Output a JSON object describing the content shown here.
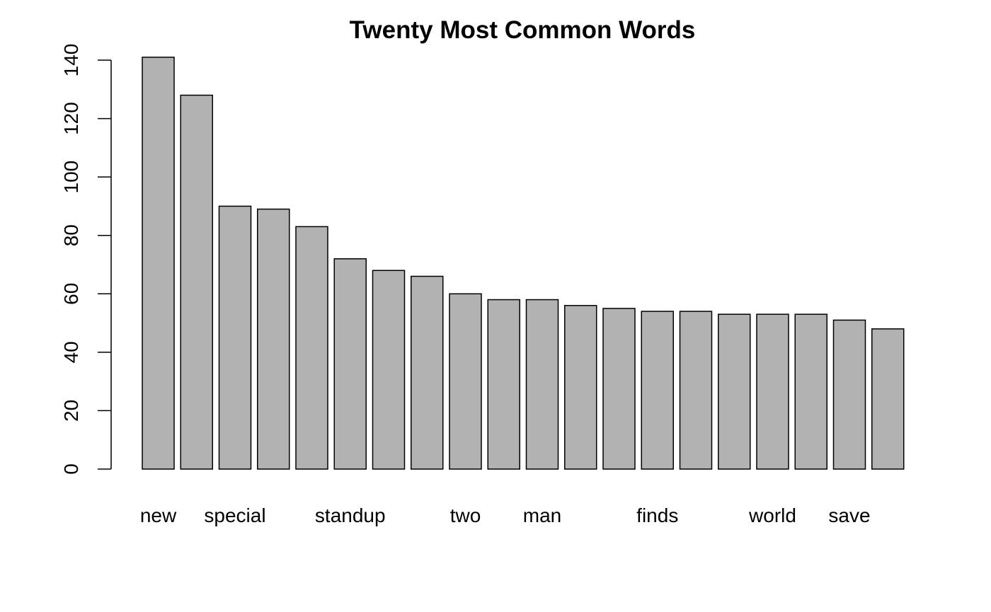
{
  "chart_data": {
    "type": "bar",
    "title": "Twenty Most Common Words",
    "xlabel": "",
    "ylabel": "",
    "ylim": [
      0,
      140
    ],
    "y_ticks": [
      0,
      20,
      40,
      60,
      80,
      100,
      120,
      140
    ],
    "y_tick_labels": [
      "0",
      "20",
      "40",
      "60",
      "80",
      "100",
      "120",
      "140"
    ],
    "values": [
      141,
      128,
      90,
      89,
      83,
      72,
      68,
      66,
      60,
      58,
      58,
      56,
      55,
      54,
      54,
      53,
      53,
      53,
      51,
      48
    ],
    "x_labels": [
      {
        "bar_index": 0,
        "text": "new"
      },
      {
        "bar_index": 2,
        "text": "special"
      },
      {
        "bar_index": 5,
        "text": "standup"
      },
      {
        "bar_index": 8,
        "text": "two"
      },
      {
        "bar_index": 10,
        "text": "man"
      },
      {
        "bar_index": 13,
        "text": "finds"
      },
      {
        "bar_index": 16,
        "text": "world"
      },
      {
        "bar_index": 18,
        "text": "save"
      }
    ],
    "bar_color": "#b2b2b2",
    "border_color": "#000000",
    "grid": false,
    "legend": "none"
  }
}
